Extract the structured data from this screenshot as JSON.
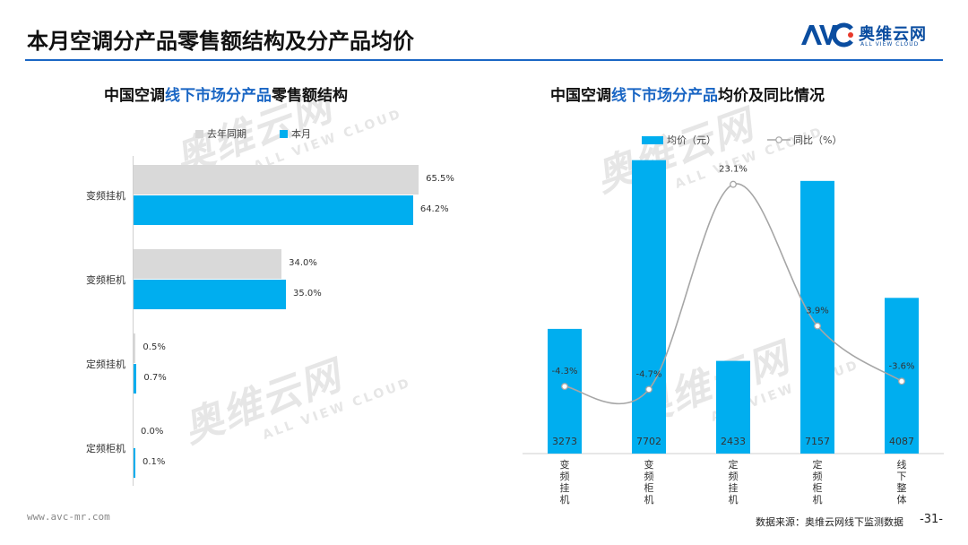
{
  "page": {
    "title": "本月空调分产品零售额结构及分产品均价",
    "brand_cn": "奥维云网",
    "brand_en": "ALL VIEW CLOUD",
    "footer_url": "www.avc-mr.com",
    "footer_source": "数据来源：奥维云网线下监测数据",
    "page_number": "-31-"
  },
  "left_chart": {
    "title_pre": "中国空调",
    "title_hl": "线下市场分产品",
    "title_post": "零售额结构",
    "legend": [
      "去年同期",
      "本月"
    ]
  },
  "right_chart": {
    "title_pre": "中国空调",
    "title_hl": "线下市场分产品",
    "title_post": "均价及同比情况",
    "legend": [
      "均价（元）",
      "同比（%）"
    ]
  },
  "colors": {
    "accent": "#00aeef",
    "last_year": "#d9d9d9",
    "line": "#a6a6a6",
    "title_blue": "#1a66c4"
  },
  "chart_data": [
    {
      "type": "bar",
      "orientation": "horizontal",
      "categories": [
        "变频挂机",
        "变频柜机",
        "定频挂机",
        "定频柜机"
      ],
      "series": [
        {
          "name": "去年同期",
          "values": [
            65.5,
            34.0,
            0.5,
            0.0
          ],
          "labels": [
            "65.5%",
            "34.0%",
            "0.5%",
            "0.0%"
          ]
        },
        {
          "name": "本月",
          "values": [
            64.2,
            35.0,
            0.7,
            0.1
          ],
          "labels": [
            "64.2%",
            "35.0%",
            "0.7%",
            "0.1%"
          ]
        }
      ],
      "xlim": [
        0,
        70
      ],
      "legend_position": "top-left"
    },
    {
      "type": "bar",
      "categories": [
        "变频挂机",
        "变频柜机",
        "定频挂机",
        "定频柜机",
        "线下整体"
      ],
      "series": [
        {
          "name": "均价（元）",
          "type": "bar",
          "values": [
            3273,
            7702,
            2433,
            7157,
            4087
          ],
          "labels": [
            "3273",
            "7702",
            "2433",
            "7157",
            "4087"
          ]
        },
        {
          "name": "同比（%）",
          "type": "line",
          "values": [
            -4.3,
            -4.7,
            23.1,
            3.9,
            -3.6
          ],
          "labels": [
            "-4.3%",
            "-4.7%",
            "23.1%",
            "3.9%",
            "-3.6%"
          ]
        }
      ],
      "ylim_bar": [
        0,
        8000
      ],
      "ylim_line": [
        -10,
        25
      ],
      "legend_position": "top-center"
    }
  ]
}
